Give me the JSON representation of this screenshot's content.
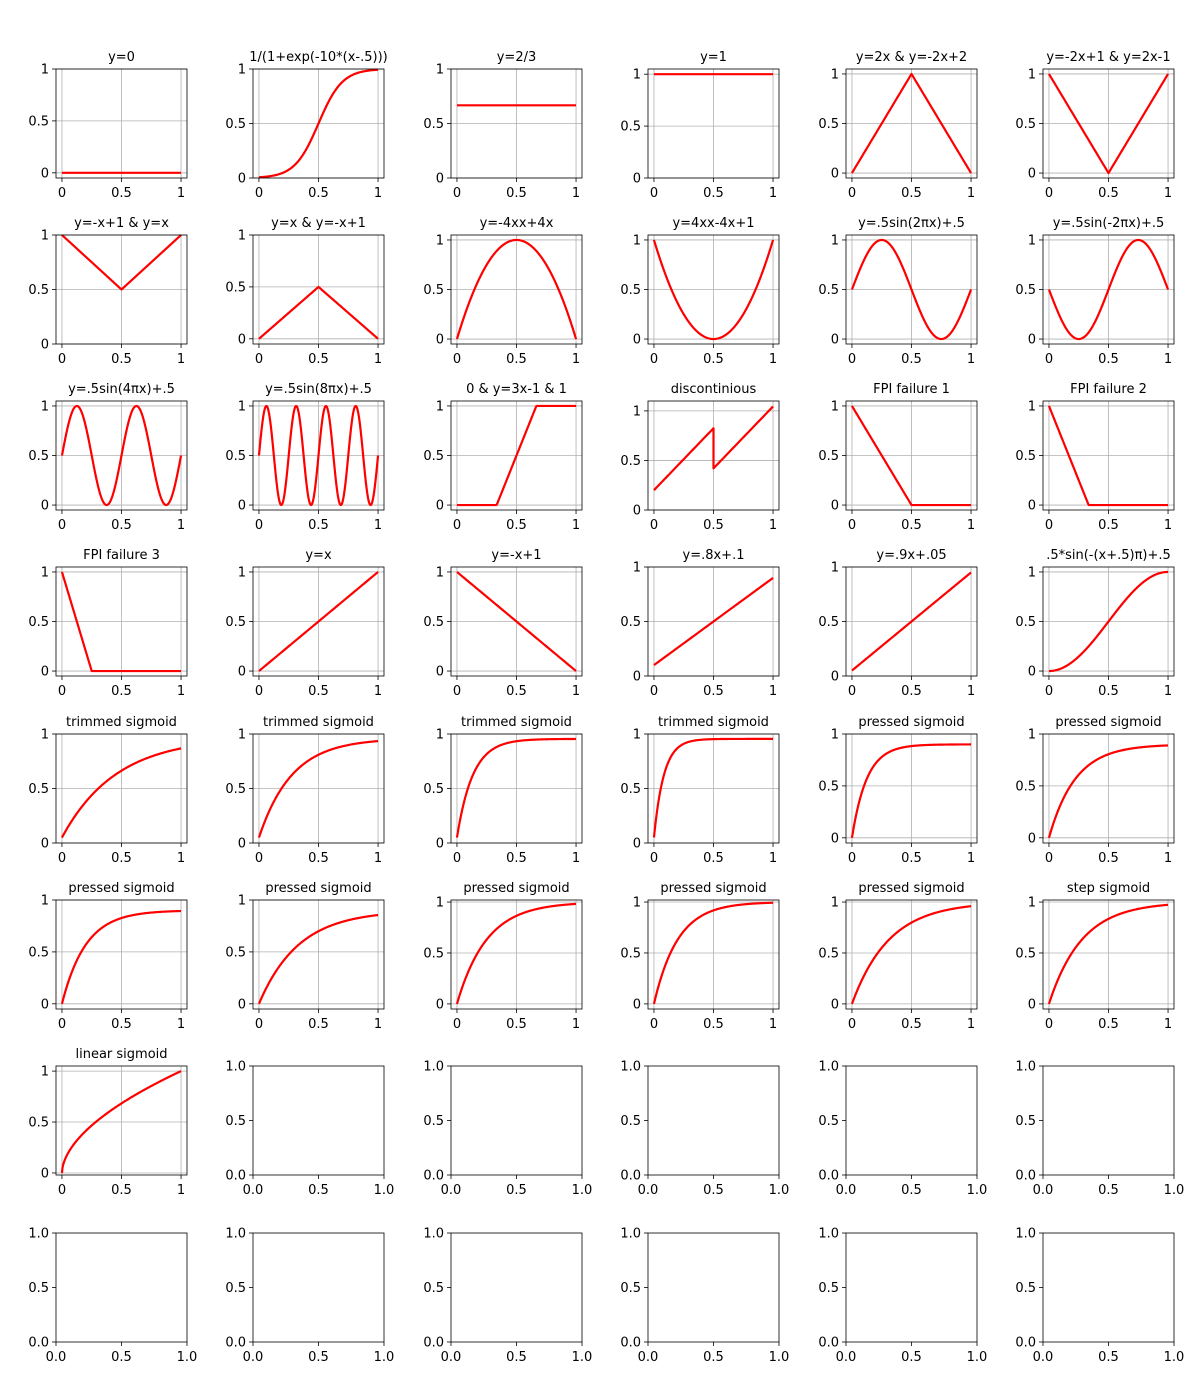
{
  "chart_data": [
    {
      "type": "line",
      "title": "y=0",
      "fn": "zero",
      "ylim": [
        -0.05,
        1.0
      ],
      "yticks": [
        "0",
        "0.5",
        "1"
      ],
      "xticks": [
        "0",
        "0.5",
        "1"
      ],
      "grid": true
    },
    {
      "type": "line",
      "title": "1/(1+exp(-10*(x-.5)))",
      "fn": "logistic",
      "ylim": [
        -0.0,
        1.0
      ],
      "yticks": [
        "0",
        "0.5",
        "1"
      ],
      "xticks": [
        "0",
        "0.5",
        "1"
      ],
      "grid": true
    },
    {
      "type": "line",
      "title": "y=2/3",
      "fn": "twothirds",
      "ylim": [
        0.0,
        1.0
      ],
      "yticks": [
        "0",
        "0.5",
        "1"
      ],
      "xticks": [
        "0",
        "0.5",
        "1"
      ],
      "grid": true
    },
    {
      "type": "line",
      "title": "y=1",
      "fn": "one",
      "ylim": [
        0.0,
        1.05
      ],
      "yticks": [
        "0",
        "0.5",
        "1"
      ],
      "xticks": [
        "0",
        "0.5",
        "1"
      ],
      "grid": true
    },
    {
      "type": "line",
      "title": "y=2x & y=-2x+2",
      "fn": "tent",
      "ylim": [
        -0.05,
        1.05
      ],
      "yticks": [
        "0",
        "0.5",
        "1"
      ],
      "xticks": [
        "0",
        "0.5",
        "1"
      ],
      "grid": true
    },
    {
      "type": "line",
      "title": "y=-2x+1 & y=2x-1",
      "fn": "vee",
      "ylim": [
        -0.05,
        1.05
      ],
      "yticks": [
        "0",
        "0.5",
        "1"
      ],
      "xticks": [
        "0",
        "0.5",
        "1"
      ],
      "grid": true
    },
    {
      "type": "line",
      "title": "y=-x+1 & y=x",
      "fn": "vhalf",
      "ylim": [
        0.0,
        1.0
      ],
      "yticks": [
        "0",
        "0.5",
        "1"
      ],
      "xticks": [
        "0",
        "0.5",
        "1"
      ],
      "grid": true
    },
    {
      "type": "line",
      "title": "y=x & y=-x+1",
      "fn": "tenthalf",
      "ylim": [
        -0.05,
        1.0
      ],
      "yticks": [
        "0",
        "0.5",
        "1"
      ],
      "xticks": [
        "0",
        "0.5",
        "1"
      ],
      "grid": true
    },
    {
      "type": "line",
      "title": "y=-4xx+4x",
      "fn": "parab_down",
      "ylim": [
        -0.05,
        1.05
      ],
      "yticks": [
        "0",
        "0.5",
        "1"
      ],
      "xticks": [
        "0",
        "0.5",
        "1"
      ],
      "grid": true
    },
    {
      "type": "line",
      "title": "y=4xx-4x+1",
      "fn": "parab_up",
      "ylim": [
        -0.05,
        1.05
      ],
      "yticks": [
        "0",
        "0.5",
        "1"
      ],
      "xticks": [
        "0",
        "0.5",
        "1"
      ],
      "grid": true
    },
    {
      "type": "line",
      "title": "y=.5sin(2πx)+.5",
      "fn": "sin2",
      "ylim": [
        -0.05,
        1.05
      ],
      "yticks": [
        "0",
        "0.5",
        "1"
      ],
      "xticks": [
        "0",
        "0.5",
        "1"
      ],
      "grid": true
    },
    {
      "type": "line",
      "title": "y=.5sin(-2πx)+.5",
      "fn": "sinneg2",
      "ylim": [
        -0.05,
        1.05
      ],
      "yticks": [
        "0",
        "0.5",
        "1"
      ],
      "xticks": [
        "0",
        "0.5",
        "1"
      ],
      "grid": true
    },
    {
      "type": "line",
      "title": "y=.5sin(4πx)+.5",
      "fn": "sin4",
      "ylim": [
        -0.05,
        1.05
      ],
      "yticks": [
        "0",
        "0.5",
        "1"
      ],
      "xticks": [
        "0",
        "0.5",
        "1"
      ],
      "grid": true
    },
    {
      "type": "line",
      "title": "y=.5sin(8πx)+.5",
      "fn": "sin8",
      "ylim": [
        -0.05,
        1.05
      ],
      "yticks": [
        "0",
        "0.5",
        "1"
      ],
      "xticks": [
        "0",
        "0.5",
        "1"
      ],
      "grid": true
    },
    {
      "type": "line",
      "title": "0 & y=3x-1 & 1",
      "fn": "ramp3",
      "ylim": [
        -0.05,
        1.05
      ],
      "yticks": [
        "0",
        "0.5",
        "1"
      ],
      "xticks": [
        "0",
        "0.5",
        "1"
      ],
      "grid": true
    },
    {
      "type": "line",
      "title": "discontinious",
      "fn": "discont",
      "ylim": [
        0.0,
        1.1
      ],
      "yticks": [
        "0",
        "0.5",
        "1"
      ],
      "xticks": [
        "0",
        "0.5",
        "1"
      ],
      "grid": true
    },
    {
      "type": "line",
      "title": "FPI failure 1",
      "fn": "fpi1",
      "ylim": [
        -0.05,
        1.05
      ],
      "yticks": [
        "0",
        "0.5",
        "1"
      ],
      "xticks": [
        "0",
        "0.5",
        "1"
      ],
      "grid": true
    },
    {
      "type": "line",
      "title": "FPI failure 2",
      "fn": "fpi2",
      "ylim": [
        -0.05,
        1.05
      ],
      "yticks": [
        "0",
        "0.5",
        "1"
      ],
      "xticks": [
        "0",
        "0.5",
        "1"
      ],
      "grid": true
    },
    {
      "type": "line",
      "title": "FPI failure 3",
      "fn": "fpi3",
      "ylim": [
        -0.05,
        1.05
      ],
      "yticks": [
        "0",
        "0.5",
        "1"
      ],
      "xticks": [
        "0",
        "0.5",
        "1"
      ],
      "grid": true
    },
    {
      "type": "line",
      "title": "y=x",
      "fn": "identity",
      "ylim": [
        -0.05,
        1.05
      ],
      "yticks": [
        "0",
        "0.5",
        "1"
      ],
      "xticks": [
        "0",
        "0.5",
        "1"
      ],
      "grid": true
    },
    {
      "type": "line",
      "title": "y=-x+1",
      "fn": "negid",
      "ylim": [
        -0.05,
        1.05
      ],
      "yticks": [
        "0",
        "0.5",
        "1"
      ],
      "xticks": [
        "0",
        "0.5",
        "1"
      ],
      "grid": true
    },
    {
      "type": "line",
      "title": "y=.8x+.1",
      "fn": "lin08",
      "ylim": [
        0.0,
        1.0
      ],
      "yticks": [
        "0",
        "0.5",
        "1"
      ],
      "xticks": [
        "0",
        "0.5",
        "1"
      ],
      "grid": true
    },
    {
      "type": "line",
      "title": "y=.9x+.05",
      "fn": "lin09",
      "ylim": [
        0.0,
        1.0
      ],
      "yticks": [
        "0",
        "0.5",
        "1"
      ],
      "xticks": [
        "0",
        "0.5",
        "1"
      ],
      "grid": true
    },
    {
      "type": "line",
      "title": ".5*sin(-(x+.5)π)+.5",
      "fn": "cosease",
      "ylim": [
        -0.05,
        1.05
      ],
      "yticks": [
        "0",
        "0.5",
        "1"
      ],
      "xticks": [
        "0",
        "0.5",
        "1"
      ],
      "grid": true
    },
    {
      "type": "line",
      "title": "trimmed sigmoid",
      "fn": "trim1",
      "ylim": [
        0.0,
        1.0
      ],
      "yticks": [
        "0",
        "0.5",
        "1"
      ],
      "xticks": [
        "0",
        "0.5",
        "1"
      ],
      "grid": true
    },
    {
      "type": "line",
      "title": "trimmed sigmoid",
      "fn": "trim2",
      "ylim": [
        0.0,
        1.0
      ],
      "yticks": [
        "0",
        "0.5",
        "1"
      ],
      "xticks": [
        "0",
        "0.5",
        "1"
      ],
      "grid": true
    },
    {
      "type": "line",
      "title": "trimmed sigmoid",
      "fn": "trim3",
      "ylim": [
        0.0,
        1.0
      ],
      "yticks": [
        "0",
        "0.5",
        "1"
      ],
      "xticks": [
        "0",
        "0.5",
        "1"
      ],
      "grid": true
    },
    {
      "type": "line",
      "title": "trimmed sigmoid",
      "fn": "trim4",
      "ylim": [
        0.0,
        1.0
      ],
      "yticks": [
        "0",
        "0.5",
        "1"
      ],
      "xticks": [
        "0",
        "0.5",
        "1"
      ],
      "grid": true
    },
    {
      "type": "line",
      "title": "pressed sigmoid",
      "fn": "press1",
      "ylim": [
        -0.05,
        1.0
      ],
      "yticks": [
        "0",
        "0.5",
        "1"
      ],
      "xticks": [
        "0",
        "0.5",
        "1"
      ],
      "grid": true
    },
    {
      "type": "line",
      "title": "pressed sigmoid",
      "fn": "press2",
      "ylim": [
        -0.05,
        1.0
      ],
      "yticks": [
        "0",
        "0.5",
        "1"
      ],
      "xticks": [
        "0",
        "0.5",
        "1"
      ],
      "grid": true
    },
    {
      "type": "line",
      "title": "pressed sigmoid",
      "fn": "press3",
      "ylim": [
        -0.05,
        1.0
      ],
      "yticks": [
        "0",
        "0.5",
        "1"
      ],
      "xticks": [
        "0",
        "0.5",
        "1"
      ],
      "grid": true
    },
    {
      "type": "line",
      "title": "pressed sigmoid",
      "fn": "press4",
      "ylim": [
        -0.05,
        1.0
      ],
      "yticks": [
        "0",
        "0.5",
        "1"
      ],
      "xticks": [
        "0",
        "0.5",
        "1"
      ],
      "grid": true
    },
    {
      "type": "line",
      "title": "pressed sigmoid",
      "fn": "press5",
      "ylim": [
        -0.05,
        1.02
      ],
      "yticks": [
        "0",
        "0.5",
        "1"
      ],
      "xticks": [
        "0",
        "0.5",
        "1"
      ],
      "grid": true
    },
    {
      "type": "line",
      "title": "pressed sigmoid",
      "fn": "press6",
      "ylim": [
        -0.05,
        1.02
      ],
      "yticks": [
        "0",
        "0.5",
        "1"
      ],
      "xticks": [
        "0",
        "0.5",
        "1"
      ],
      "grid": true
    },
    {
      "type": "line",
      "title": "pressed sigmoid",
      "fn": "press7",
      "ylim": [
        -0.05,
        1.02
      ],
      "yticks": [
        "0",
        "0.5",
        "1"
      ],
      "xticks": [
        "0",
        "0.5",
        "1"
      ],
      "grid": true
    },
    {
      "type": "line",
      "title": "step sigmoid",
      "fn": "step",
      "ylim": [
        -0.05,
        1.02
      ],
      "yticks": [
        "0",
        "0.5",
        "1"
      ],
      "xticks": [
        "0",
        "0.5",
        "1"
      ],
      "grid": true
    },
    {
      "type": "line",
      "title": "linear sigmoid",
      "fn": "linsig",
      "ylim": [
        -0.02,
        1.05
      ],
      "yticks": [
        "0",
        "0.5",
        "1"
      ],
      "xticks": [
        "0",
        "0.5",
        "1"
      ],
      "grid": true
    },
    {
      "type": "empty",
      "title": "",
      "ylim": [
        0.0,
        1.0
      ],
      "yticks": [
        "0.0",
        "0.5",
        "1.0"
      ],
      "xticks": [
        "0.0",
        "0.5",
        "1.0"
      ],
      "grid": false
    },
    {
      "type": "empty",
      "title": "",
      "ylim": [
        0.0,
        1.0
      ],
      "yticks": [
        "0.0",
        "0.5",
        "1.0"
      ],
      "xticks": [
        "0.0",
        "0.5",
        "1.0"
      ],
      "grid": false
    },
    {
      "type": "empty",
      "title": "",
      "ylim": [
        0.0,
        1.0
      ],
      "yticks": [
        "0.0",
        "0.5",
        "1.0"
      ],
      "xticks": [
        "0.0",
        "0.5",
        "1.0"
      ],
      "grid": false
    },
    {
      "type": "empty",
      "title": "",
      "ylim": [
        0.0,
        1.0
      ],
      "yticks": [
        "0.0",
        "0.5",
        "1.0"
      ],
      "xticks": [
        "0.0",
        "0.5",
        "1.0"
      ],
      "grid": false
    },
    {
      "type": "empty",
      "title": "",
      "ylim": [
        0.0,
        1.0
      ],
      "yticks": [
        "0.0",
        "0.5",
        "1.0"
      ],
      "xticks": [
        "0.0",
        "0.5",
        "1.0"
      ],
      "grid": false
    },
    {
      "type": "empty",
      "title": "",
      "ylim": [
        0.0,
        1.0
      ],
      "yticks": [
        "0.0",
        "0.5",
        "1.0"
      ],
      "xticks": [
        "0.0",
        "0.5",
        "1.0"
      ],
      "grid": false
    },
    {
      "type": "empty",
      "title": "",
      "ylim": [
        0.0,
        1.0
      ],
      "yticks": [
        "0.0",
        "0.5",
        "1.0"
      ],
      "xticks": [
        "0.0",
        "0.5",
        "1.0"
      ],
      "grid": false
    },
    {
      "type": "empty",
      "title": "",
      "ylim": [
        0.0,
        1.0
      ],
      "yticks": [
        "0.0",
        "0.5",
        "1.0"
      ],
      "xticks": [
        "0.0",
        "0.5",
        "1.0"
      ],
      "grid": false
    },
    {
      "type": "empty",
      "title": "",
      "ylim": [
        0.0,
        1.0
      ],
      "yticks": [
        "0.0",
        "0.5",
        "1.0"
      ],
      "xticks": [
        "0.0",
        "0.5",
        "1.0"
      ],
      "grid": false
    },
    {
      "type": "empty",
      "title": "",
      "ylim": [
        0.0,
        1.0
      ],
      "yticks": [
        "0.0",
        "0.5",
        "1.0"
      ],
      "xticks": [
        "0.0",
        "0.5",
        "1.0"
      ],
      "grid": false
    },
    {
      "type": "empty",
      "title": "",
      "ylim": [
        0.0,
        1.0
      ],
      "yticks": [
        "0.0",
        "0.5",
        "1.0"
      ],
      "xticks": [
        "0.0",
        "0.5",
        "1.0"
      ],
      "grid": false
    }
  ],
  "colors": {
    "line": "#ff0000",
    "grid": "#b0b0b0",
    "axis": "#000000"
  }
}
